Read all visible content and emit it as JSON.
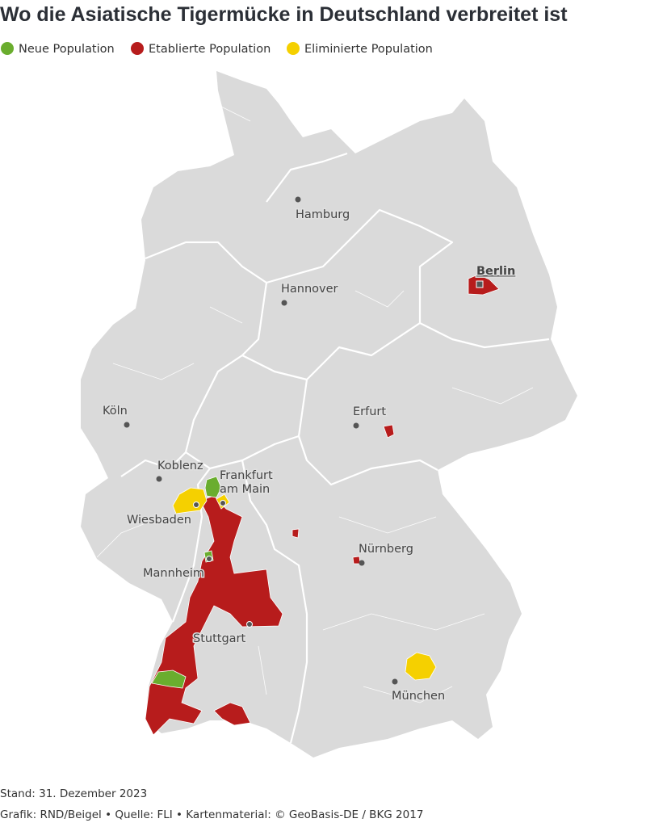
{
  "title": "Wo die Asiatische Tigermücke in Deutschland verbreitet ist",
  "legend": [
    {
      "label": "Neue Population",
      "color": "#6aad2e"
    },
    {
      "label": "Etablierte Population",
      "color": "#b71c1c"
    },
    {
      "label": "Eliminierte Population",
      "color": "#f5d000"
    }
  ],
  "cities": [
    {
      "label": "Hamburg"
    },
    {
      "label": "Berlin"
    },
    {
      "label": "Hannover"
    },
    {
      "label": "Köln"
    },
    {
      "label": "Erfurt"
    },
    {
      "label": "Koblenz"
    },
    {
      "label": [
        "Frankfurt",
        "am Main"
      ]
    },
    {
      "label": "Wiesbaden"
    },
    {
      "label": "Nürnberg"
    },
    {
      "label": "Mannheim"
    },
    {
      "label": "Stuttgart"
    },
    {
      "label": "München"
    }
  ],
  "footer": {
    "date": "Stand: 31. Dezember 2023",
    "credits": "Grafik: RND/Beigel • Quelle: FLI • Kartenmaterial: © GeoBasis-DE / BKG 2017"
  }
}
